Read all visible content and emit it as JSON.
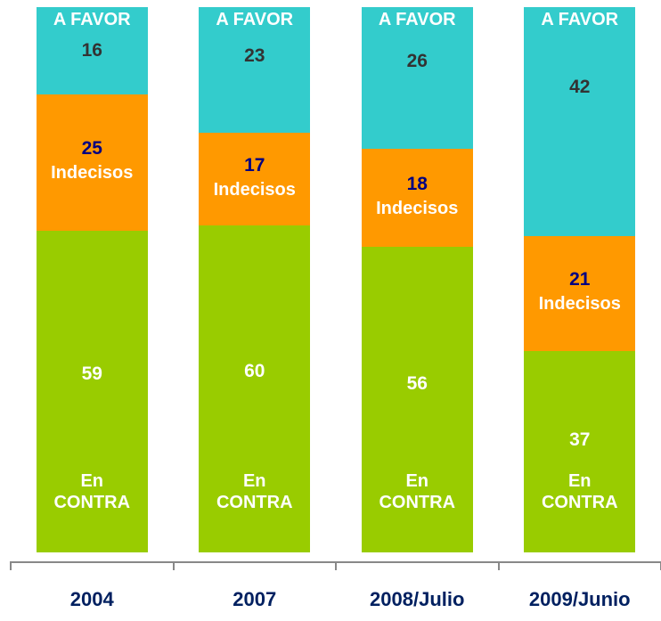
{
  "chart_data": {
    "type": "bar",
    "stacked": true,
    "categories": [
      "2004",
      "2007",
      "2008/Julio",
      "2009/Junio"
    ],
    "series": [
      {
        "name": "En CONTRA",
        "color": "#99cc00",
        "label_color": "#ffffff",
        "values": [
          59,
          60,
          56,
          37
        ]
      },
      {
        "name": "Indecisos",
        "color": "#ff9900",
        "label_color": "#000080",
        "values": [
          25,
          17,
          18,
          21
        ]
      },
      {
        "name": "A FAVOR",
        "color": "#33cccc",
        "label_color": "#333333",
        "values": [
          16,
          23,
          26,
          42
        ]
      }
    ],
    "ylim": [
      0,
      100
    ]
  }
}
